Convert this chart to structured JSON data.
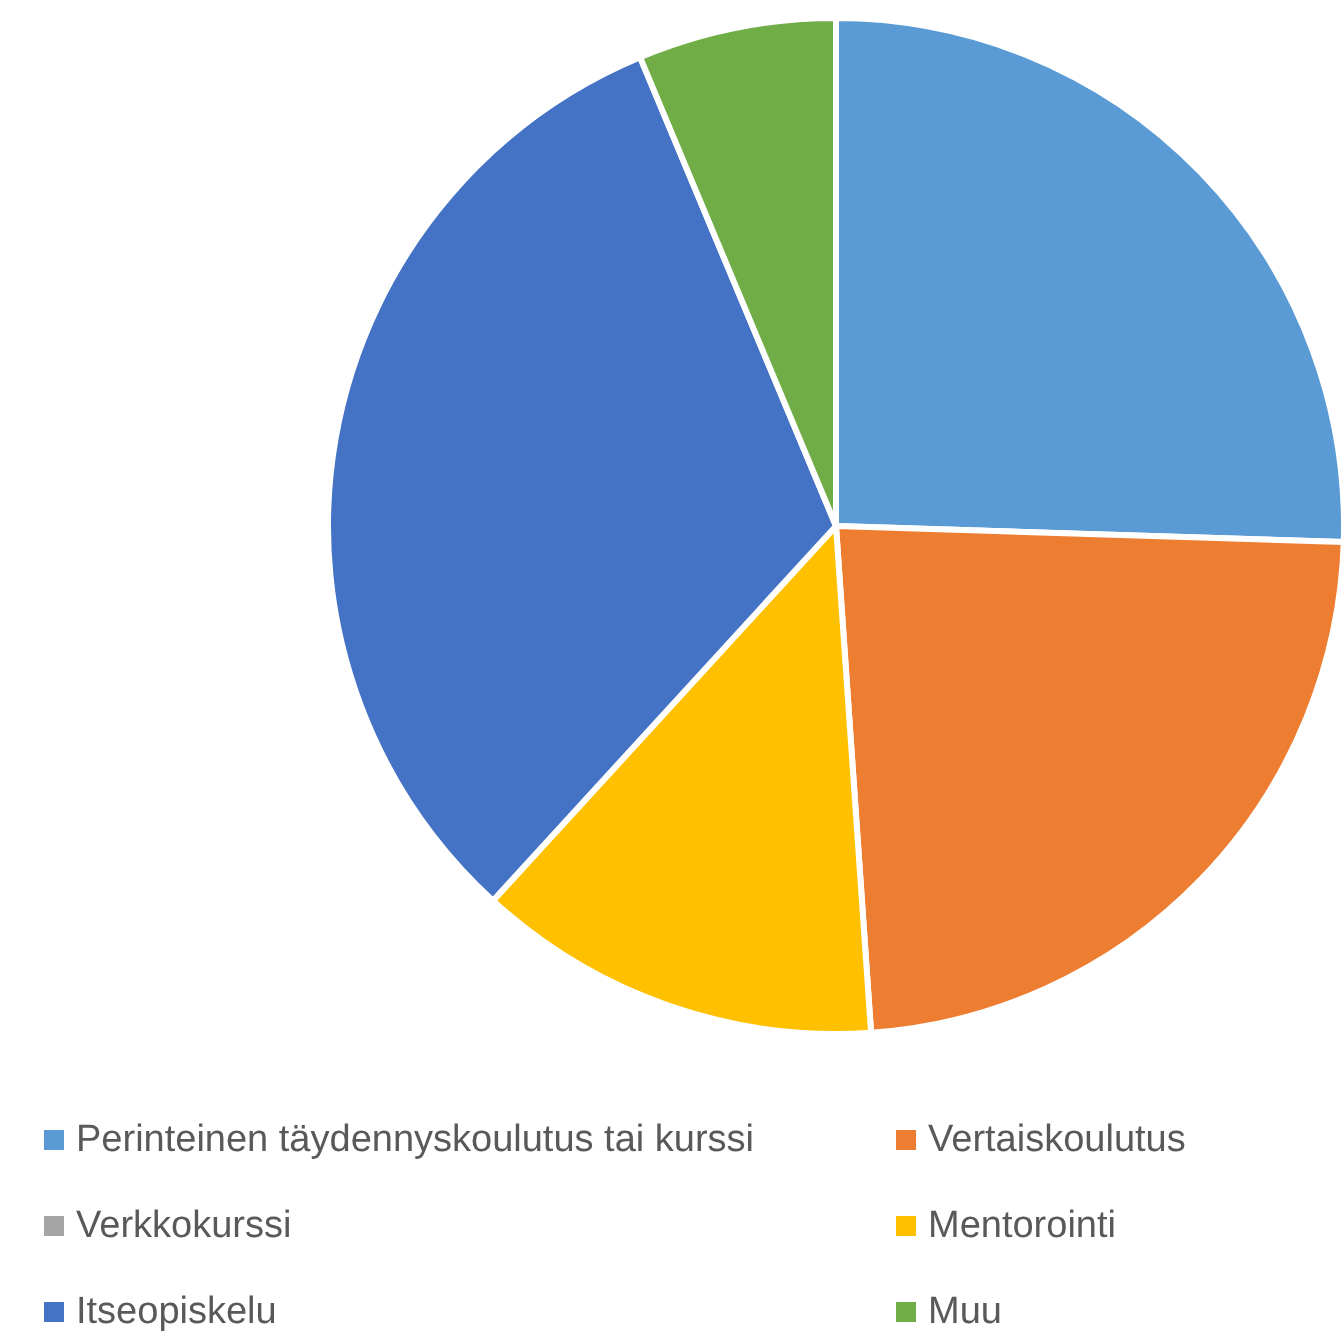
{
  "chart_data": {
    "type": "pie",
    "categories": [
      "Perinteinen täydennyskoulutus tai kurssi",
      "Vertaiskoulutus",
      "Verkkokurssi",
      "Mentorointi",
      "Itseopiskelu",
      "Muu"
    ],
    "values": [
      25.5,
      23.4,
      0,
      12.9,
      31.9,
      6.3
    ],
    "colors": [
      "#5b9bd5",
      "#ed7d31",
      "#a5a5a5",
      "#ffc000",
      "#4472c4",
      "#70ad47"
    ],
    "legend": "bottom"
  }
}
